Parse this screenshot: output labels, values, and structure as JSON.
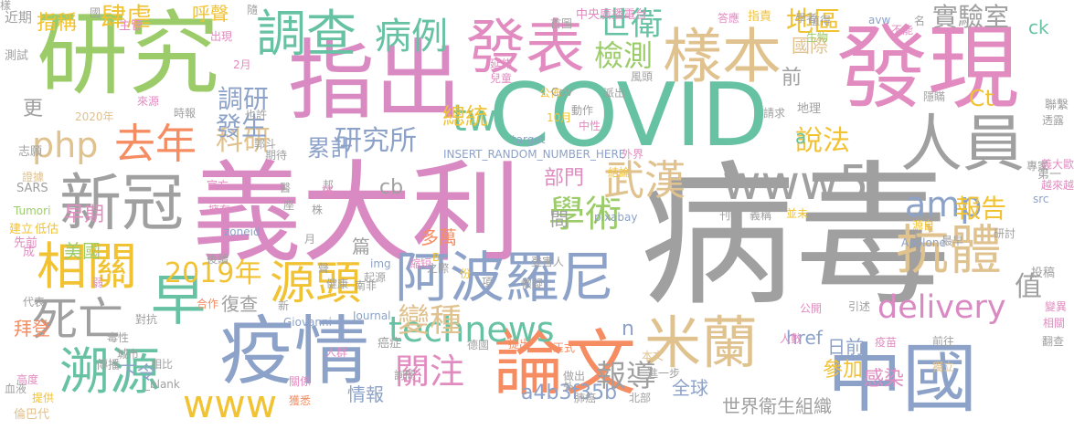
{
  "words": [
    {
      "text": "病毒",
      "color": "#a0a0a0"
    },
    {
      "text": "義大利",
      "color": "#d98ac2"
    },
    {
      "text": "研究",
      "color": "#9ccc6a"
    },
    {
      "text": "發現",
      "color": "#e28bc0"
    },
    {
      "text": "COVID",
      "color": "#67c2a3"
    },
    {
      "text": "指出",
      "color": "#d98ac2"
    },
    {
      "text": "疫情",
      "color": "#8da2c8"
    },
    {
      "text": "論文",
      "color": "#f58c62"
    },
    {
      "text": "中國",
      "color": "#8da2c8"
    },
    {
      "text": "人員",
      "color": "#a0a0a0"
    },
    {
      "text": "新冠",
      "color": "#a0a0a0"
    },
    {
      "text": "阿波羅尼",
      "color": "#8da2c8"
    },
    {
      "text": "發表",
      "color": "#e28bc0"
    },
    {
      "text": "樣本",
      "color": "#e0c28f"
    },
    {
      "text": "調查",
      "color": "#67c2a3"
    },
    {
      "text": "抗體",
      "color": "#e0c28f"
    },
    {
      "text": "米蘭",
      "color": "#e0c28f"
    },
    {
      "text": "technews",
      "color": "#67c2a3"
    },
    {
      "text": "www5",
      "color": "#a0a0a0"
    },
    {
      "text": "相關",
      "color": "#f1c232"
    },
    {
      "text": "源頭",
      "color": "#f1c232"
    },
    {
      "text": "去年",
      "color": "#f58c62"
    },
    {
      "text": "早",
      "color": "#67c2a3"
    },
    {
      "text": "溯源",
      "color": "#67c2a3"
    },
    {
      "text": "死亡",
      "color": "#a0a0a0"
    },
    {
      "text": "武漢",
      "color": "#e0c28f"
    },
    {
      "text": "delivery",
      "color": "#d98ac2"
    },
    {
      "text": "www",
      "color": "#f1c232"
    },
    {
      "text": "amp",
      "color": "#8da2c8"
    },
    {
      "text": "php",
      "color": "#e0c28f"
    },
    {
      "text": "tw",
      "color": "#67c2a3"
    },
    {
      "text": "2019年",
      "color": "#f1c232"
    },
    {
      "text": "學術",
      "color": "#9ccc6a"
    },
    {
      "text": "病例",
      "color": "#67c2a3"
    },
    {
      "text": "關注",
      "color": "#e28bc0"
    },
    {
      "text": "報導",
      "color": "#a0a0a0"
    },
    {
      "text": "變種",
      "color": "#e0c28f"
    },
    {
      "text": "世衛",
      "color": "#67c2a3"
    },
    {
      "text": "檢測",
      "color": "#9ccc6a"
    },
    {
      "text": "地區",
      "color": "#f1c232"
    },
    {
      "text": "實驗室",
      "color": "#a0a0a0"
    },
    {
      "text": "說法",
      "color": "#f1c232"
    },
    {
      "text": "報告",
      "color": "#f1c232"
    },
    {
      "text": "Ct",
      "color": "#f1c232"
    },
    {
      "text": "研究所",
      "color": "#8da2c8"
    },
    {
      "text": "科研",
      "color": "#e0c28f"
    },
    {
      "text": "調研",
      "color": "#8da2c8"
    },
    {
      "text": "發生",
      "color": "#8da2c8"
    },
    {
      "text": "總統",
      "color": "#f1c232"
    },
    {
      "text": "累計",
      "color": "#8da2c8"
    },
    {
      "text": "肆虐",
      "color": "#f1c232"
    },
    {
      "text": "指稱",
      "color": "#f1c232"
    },
    {
      "text": "呼聲",
      "color": "#f1c232"
    },
    {
      "text": "國際",
      "color": "#e0c28f"
    },
    {
      "text": "ck",
      "color": "#67c2a3"
    },
    {
      "text": "值",
      "color": "#a0a0a0"
    },
    {
      "text": "href",
      "color": "#8da2c8"
    },
    {
      "text": "a4b3f35b",
      "color": "#8da2c8"
    },
    {
      "text": "全球",
      "color": "#8da2c8"
    },
    {
      "text": "世界衛生組織",
      "color": "#a0a0a0"
    },
    {
      "text": "感染",
      "color": "#e28bc0"
    },
    {
      "text": "參加",
      "color": "#f1c232"
    },
    {
      "text": "日前",
      "color": "#8da2c8"
    },
    {
      "text": "cb",
      "color": "#a0a0a0"
    },
    {
      "text": "篇",
      "color": "#a0a0a0"
    },
    {
      "text": "多萬",
      "color": "#f58c62"
    },
    {
      "text": "部門",
      "color": "#e28bc0"
    },
    {
      "text": "間",
      "color": "#a0a0a0"
    },
    {
      "text": "早期",
      "color": "#e28bc0"
    },
    {
      "text": "美國",
      "color": "#9ccc6a"
    },
    {
      "text": "拜登",
      "color": "#f58c62"
    },
    {
      "text": "下令",
      "color": "#8da2c8"
    },
    {
      "text": "復查",
      "color": "#a0a0a0"
    },
    {
      "text": "情報",
      "color": "#8da2c8"
    },
    {
      "text": "更",
      "color": "#a0a0a0"
    },
    {
      "text": "前",
      "color": "#a0a0a0"
    },
    {
      "text": "n",
      "color": "#8da2c8"
    },
    {
      "text": "a",
      "color": "#67c2a3"
    },
    {
      "text": "近期",
      "color": "#a0a0a0"
    },
    {
      "text": "測試",
      "color": "#a0a0a0"
    },
    {
      "text": "2020年",
      "color": "#e0c28f"
    },
    {
      "text": "志願",
      "color": "#a0a0a0"
    },
    {
      "text": "SARS",
      "color": "#a0a0a0"
    },
    {
      "text": "Tumori",
      "color": "#9ccc6a"
    },
    {
      "text": "建立",
      "color": "#f1c232"
    },
    {
      "text": "先前",
      "color": "#e28bc0"
    },
    {
      "text": "低估",
      "color": "#f1c232"
    },
    {
      "text": "成",
      "color": "#e28bc0"
    },
    {
      "text": "代表",
      "color": "#a0a0a0"
    },
    {
      "text": "血液",
      "color": "#a0a0a0"
    },
    {
      "text": "高度",
      "color": "#e28bc0"
    },
    {
      "text": "提供",
      "color": "#f1c232"
    },
    {
      "text": "倫巴代",
      "color": "#e0c28f"
    },
    {
      "text": "傳播",
      "color": "#a0a0a0"
    },
    {
      "text": "相比",
      "color": "#a0a0a0"
    },
    {
      "text": "_blank",
      "color": "#a0a0a0"
    },
    {
      "text": "來源",
      "color": "#e28bc0"
    },
    {
      "text": "時報",
      "color": "#a0a0a0"
    },
    {
      "text": "也許",
      "color": "#a0a0a0"
    },
    {
      "text": "出現",
      "color": "#e28bc0"
    },
    {
      "text": "2月",
      "color": "#e28bc0"
    },
    {
      "text": "主管",
      "color": "#e28bc0"
    },
    {
      "text": "首圖",
      "color": "#a0a0a0"
    },
    {
      "text": "中央廣播電台",
      "color": "#e28bc0"
    },
    {
      "text": "答應",
      "color": "#e28bc0"
    },
    {
      "text": "指責",
      "color": "#f1c232"
    },
    {
      "text": "學者",
      "color": "#a0a0a0"
    },
    {
      "text": "值得",
      "color": "#a0a0a0"
    },
    {
      "text": "avw",
      "color": "#8da2c8"
    },
    {
      "text": "不能",
      "color": "#e28bc0"
    },
    {
      "text": "名",
      "color": "#a0a0a0"
    },
    {
      "text": "延伸",
      "color": "#e28bc0"
    },
    {
      "text": "兒童",
      "color": "#e28bc0"
    },
    {
      "text": "風頭",
      "color": "#a0a0a0"
    },
    {
      "text": "公佈",
      "color": "#f1c232"
    },
    {
      "text": "10月",
      "color": "#f1c232"
    },
    {
      "text": "動作",
      "color": "#a0a0a0"
    },
    {
      "text": "CoV",
      "color": "#a0a0a0"
    },
    {
      "text": "派出",
      "color": "#a0a0a0"
    },
    {
      "text": "target",
      "color": "#8da2c8"
    },
    {
      "text": "INSERT_RANDOM_NUMBER_HERE",
      "color": "#8da2c8"
    },
    {
      "text": "中性",
      "color": "#e28bc0"
    },
    {
      "text": "外界",
      "color": "#e28bc0"
    },
    {
      "text": "結論",
      "color": "#f1c232"
    },
    {
      "text": "並未",
      "color": "#f1c232"
    },
    {
      "text": "pixabay",
      "color": "#8da2c8"
    },
    {
      "text": "義稱",
      "color": "#a0a0a0"
    },
    {
      "text": "刊物",
      "color": "#a0a0a0"
    },
    {
      "text": "請求",
      "color": "#a0a0a0"
    },
    {
      "text": "地理",
      "color": "#a0a0a0"
    },
    {
      "text": "生物",
      "color": "#9ccc6a"
    },
    {
      "text": "隱瞞",
      "color": "#a0a0a0"
    },
    {
      "text": "聯繫",
      "color": "#a0a0a0"
    },
    {
      "text": "透露",
      "color": "#a0a0a0"
    },
    {
      "text": "義大歐",
      "color": "#e28bc0"
    },
    {
      "text": "第一",
      "color": "#a0a0a0"
    },
    {
      "text": "越來越",
      "color": "#e28bc0"
    },
    {
      "text": "src",
      "color": "#8da2c8"
    },
    {
      "text": "專家",
      "color": "#a0a0a0"
    },
    {
      "text": "研討",
      "color": "#a0a0a0"
    },
    {
      "text": "最早",
      "color": "#a0a0a0"
    },
    {
      "text": "源自",
      "color": "#f1c232"
    },
    {
      "text": "Apolone",
      "color": "#8da2c8"
    },
    {
      "text": "登害人",
      "color": "#a0a0a0"
    },
    {
      "text": "懷疑",
      "color": "#a0a0a0"
    },
    {
      "text": "項",
      "color": "#a0a0a0"
    },
    {
      "text": "份",
      "color": "#f1c232"
    },
    {
      "text": "B",
      "color": "#f1c232"
    },
    {
      "text": "之際",
      "color": "#a0a0a0"
    },
    {
      "text": "縮短",
      "color": "#e28bc0"
    },
    {
      "text": "img",
      "color": "#8da2c8"
    },
    {
      "text": "起源",
      "color": "#a0a0a0"
    },
    {
      "text": "南非",
      "color": "#a0a0a0"
    },
    {
      "text": "健康",
      "color": "#a0a0a0"
    },
    {
      "text": "後續",
      "color": "#a0a0a0"
    },
    {
      "text": "zoneid",
      "color": "#8da2c8"
    },
    {
      "text": "擁有",
      "color": "#e28bc0"
    },
    {
      "text": "官方",
      "color": "#e28bc0"
    },
    {
      "text": "合作",
      "color": "#f58c62"
    },
    {
      "text": "對抗",
      "color": "#a0a0a0"
    },
    {
      "text": "毒性",
      "color": "#a0a0a0"
    },
    {
      "text": "城市",
      "color": "#a0a0a0"
    },
    {
      "text": "Giovanni",
      "color": "#8da2c8"
    },
    {
      "text": "Journal",
      "color": "#8da2c8"
    },
    {
      "text": "人群",
      "color": "#e28bc0"
    },
    {
      "text": "癌症",
      "color": "#a0a0a0"
    },
    {
      "text": "德國",
      "color": "#a0a0a0"
    },
    {
      "text": "提出",
      "color": "#f58c62"
    },
    {
      "text": "正式",
      "color": "#f58c62"
    },
    {
      "text": "獲悉",
      "color": "#f58c62"
    },
    {
      "text": "關係",
      "color": "#e28bc0"
    },
    {
      "text": "詢問",
      "color": "#a0a0a0"
    },
    {
      "text": "做出",
      "color": "#a0a0a0"
    },
    {
      "text": "外",
      "color": "#a0a0a0"
    },
    {
      "text": "肺癌",
      "color": "#a0a0a0"
    },
    {
      "text": "本文",
      "color": "#e0c28f"
    },
    {
      "text": "進一步",
      "color": "#a0a0a0"
    },
    {
      "text": "北部",
      "color": "#a0a0a0"
    },
    {
      "text": "公開",
      "color": "#e28bc0"
    },
    {
      "text": "人數",
      "color": "#e28bc0"
    },
    {
      "text": "引述",
      "color": "#a0a0a0"
    },
    {
      "text": "疫苗",
      "color": "#e28bc0"
    },
    {
      "text": "前往",
      "color": "#a0a0a0"
    },
    {
      "text": "獨立",
      "color": "#e0c28f"
    },
    {
      "text": "投稿",
      "color": "#a0a0a0"
    },
    {
      "text": "變異",
      "color": "#e28bc0"
    },
    {
      "text": "相關",
      "color": "#e28bc0"
    },
    {
      "text": "翻查",
      "color": "#a0a0a0"
    },
    {
      "text": "證據",
      "color": "#e0c28f"
    },
    {
      "text": "弱",
      "color": "#e28bc0"
    },
    {
      "text": "邦",
      "color": "#a0a0a0"
    },
    {
      "text": "讓",
      "color": "#e28bc0"
    },
    {
      "text": "座",
      "color": "#a0a0a0"
    },
    {
      "text": "期待",
      "color": "#a0a0a0"
    },
    {
      "text": "郭斗",
      "color": "#a0a0a0"
    },
    {
      "text": "株",
      "color": "#a0a0a0"
    },
    {
      "text": "月",
      "color": "#a0a0a0"
    },
    {
      "text": "聲",
      "color": "#a0a0a0"
    },
    {
      "text": "新",
      "color": "#a0a0a0"
    },
    {
      "text": "醫",
      "color": "#a0a0a0"
    },
    {
      "text": "國",
      "color": "#a0a0a0"
    },
    {
      "text": "隨",
      "color": "#a0a0a0"
    },
    {
      "text": "樣",
      "color": "#a0a0a0"
    }
  ]
}
